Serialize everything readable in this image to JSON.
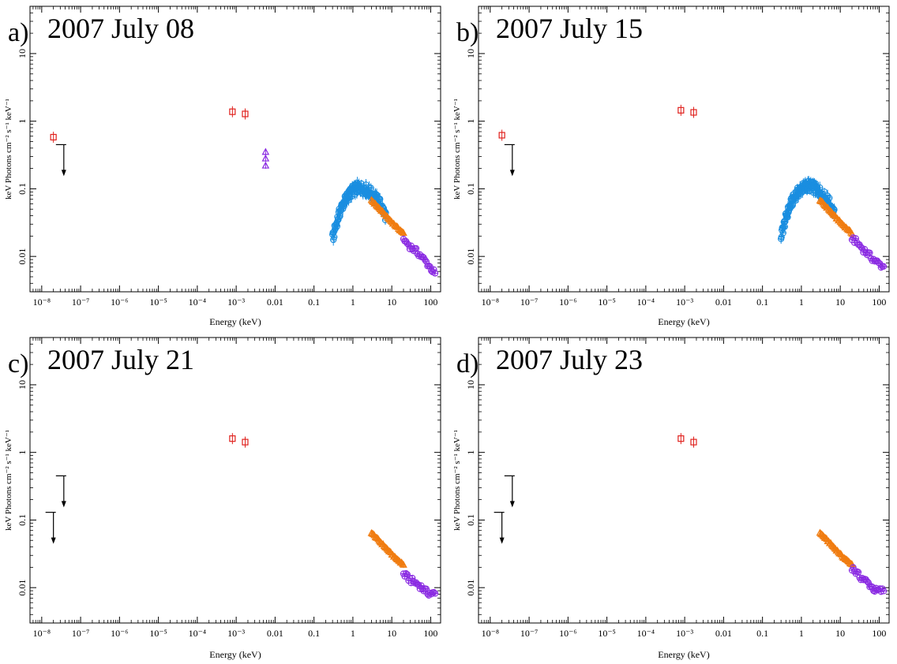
{
  "colors": {
    "radio": "#e0201c",
    "optical": "#8a2be2",
    "xrt": "#1a8ee0",
    "batse": "#f07c10",
    "bat": "#8a2be2",
    "limit": "#000000"
  },
  "chart_data": [
    {
      "type": "scatter",
      "panel_label": "a)",
      "title": "2007 July 08",
      "xlabel": "Energy (keV)",
      "ylabel": "keV Photons cm⁻² s⁻¹ keV⁻¹",
      "xscale": "log",
      "yscale": "log",
      "xlim": [
        5e-09,
        180
      ],
      "ylim": [
        0.003,
        50
      ],
      "xticks": [
        "10⁻⁸",
        "10⁻⁷",
        "10⁻⁶",
        "10⁻⁵",
        "10⁻⁴",
        "10⁻³",
        "0.01",
        "0.1",
        "1",
        "10",
        "100"
      ],
      "yticks": [
        "0.01",
        "0.1",
        "1",
        "10"
      ],
      "series": [
        {
          "marker": "square",
          "color": "radio",
          "x": [
            2e-08,
            0.0008,
            0.0017
          ],
          "y": [
            0.58,
            1.38,
            1.28
          ]
        },
        {
          "marker": "triangle",
          "color": "optical",
          "x": [
            0.0057,
            0.0057,
            0.0057
          ],
          "y": [
            0.35,
            0.28,
            0.22
          ]
        },
        {
          "marker": "circle",
          "color": "xrt",
          "curve": "xrt",
          "x": [
            0.3,
            0.4,
            0.5,
            0.7,
            1,
            1.5,
            2,
            3,
            5,
            7
          ],
          "y": [
            0.018,
            0.035,
            0.052,
            0.075,
            0.095,
            0.105,
            0.1,
            0.085,
            0.06,
            0.04
          ]
        },
        {
          "marker": "triangle",
          "color": "batse",
          "curve": "power",
          "x": [
            3,
            5,
            8,
            12,
            20
          ],
          "y": [
            0.068,
            0.05,
            0.037,
            0.029,
            0.022
          ]
        },
        {
          "marker": "circle",
          "color": "bat",
          "curve": "power",
          "x": [
            20,
            30,
            50,
            80,
            130
          ],
          "y": [
            0.018,
            0.014,
            0.011,
            0.008,
            0.0055
          ]
        }
      ],
      "upper_limits": [
        {
          "x": 3.7e-08,
          "y": 0.45
        }
      ]
    },
    {
      "type": "scatter",
      "panel_label": "b)",
      "title": "2007 July 15",
      "xlabel": "Energy (keV)",
      "ylabel": "keV Photons cm⁻² s⁻¹ keV⁻¹",
      "xscale": "log",
      "yscale": "log",
      "xlim": [
        5e-09,
        180
      ],
      "ylim": [
        0.003,
        50
      ],
      "xticks": [
        "10⁻⁸",
        "10⁻⁷",
        "10⁻⁶",
        "10⁻⁵",
        "10⁻⁴",
        "10⁻³",
        "0.01",
        "0.1",
        "1",
        "10",
        "100"
      ],
      "yticks": [
        "0.01",
        "0.1",
        "1",
        "10"
      ],
      "series": [
        {
          "marker": "square",
          "color": "radio",
          "x": [
            2e-08,
            0.0008,
            0.0017
          ],
          "y": [
            0.62,
            1.45,
            1.35
          ]
        },
        {
          "marker": "circle",
          "color": "xrt",
          "curve": "xrt",
          "x": [
            0.3,
            0.4,
            0.5,
            0.7,
            1,
            1.5,
            2,
            3,
            5,
            7
          ],
          "y": [
            0.02,
            0.037,
            0.055,
            0.08,
            0.1,
            0.112,
            0.105,
            0.09,
            0.065,
            0.042
          ]
        },
        {
          "marker": "triangle",
          "color": "batse",
          "curve": "power",
          "x": [
            3,
            5,
            8,
            12,
            20
          ],
          "y": [
            0.068,
            0.05,
            0.037,
            0.029,
            0.022
          ]
        },
        {
          "marker": "circle",
          "color": "bat",
          "curve": "power",
          "x": [
            20,
            30,
            50,
            80,
            130
          ],
          "y": [
            0.019,
            0.015,
            0.011,
            0.0085,
            0.007
          ]
        }
      ],
      "upper_limits": [
        {
          "x": 3.7e-08,
          "y": 0.45
        }
      ]
    },
    {
      "type": "scatter",
      "panel_label": "c)",
      "title": "2007 July 21",
      "xlabel": "Energy (keV)",
      "ylabel": "keV Photons cm⁻² s⁻¹ keV⁻¹",
      "xscale": "log",
      "yscale": "log",
      "xlim": [
        5e-09,
        180
      ],
      "ylim": [
        0.003,
        50
      ],
      "xticks": [
        "10⁻⁸",
        "10⁻⁷",
        "10⁻⁶",
        "10⁻⁵",
        "10⁻⁴",
        "10⁻³",
        "0.01",
        "0.1",
        "1",
        "10",
        "100"
      ],
      "yticks": [
        "0.01",
        "0.1",
        "1",
        "10"
      ],
      "series": [
        {
          "marker": "square",
          "color": "radio",
          "x": [
            0.0008,
            0.0017
          ],
          "y": [
            1.6,
            1.42
          ]
        },
        {
          "marker": "triangle",
          "color": "batse",
          "curve": "power",
          "x": [
            3,
            5,
            8,
            12,
            20
          ],
          "y": [
            0.065,
            0.048,
            0.036,
            0.028,
            0.022
          ]
        },
        {
          "marker": "circle",
          "color": "bat",
          "curve": "power",
          "x": [
            20,
            30,
            50,
            80,
            130
          ],
          "y": [
            0.016,
            0.013,
            0.011,
            0.0085,
            0.008
          ]
        }
      ],
      "upper_limits": [
        {
          "x": 2e-08,
          "y": 0.13
        },
        {
          "x": 3.7e-08,
          "y": 0.45
        }
      ]
    },
    {
      "type": "scatter",
      "panel_label": "d)",
      "title": "2007 July 23",
      "xlabel": "Energy (keV)",
      "ylabel": "keV Photons cm⁻² s⁻¹ keV⁻¹",
      "xscale": "log",
      "yscale": "log",
      "xlim": [
        5e-09,
        180
      ],
      "ylim": [
        0.003,
        50
      ],
      "xticks": [
        "10⁻⁸",
        "10⁻⁷",
        "10⁻⁶",
        "10⁻⁵",
        "10⁻⁴",
        "10⁻³",
        "0.01",
        "0.1",
        "1",
        "10",
        "100"
      ],
      "yticks": [
        "0.01",
        "0.1",
        "1",
        "10"
      ],
      "series": [
        {
          "marker": "square",
          "color": "radio",
          "x": [
            0.0008,
            0.0017
          ],
          "y": [
            1.6,
            1.42
          ]
        },
        {
          "marker": "triangle",
          "color": "batse",
          "curve": "power",
          "x": [
            3,
            5,
            8,
            12,
            20
          ],
          "y": [
            0.065,
            0.048,
            0.036,
            0.028,
            0.022
          ]
        },
        {
          "marker": "circle",
          "color": "bat",
          "curve": "power",
          "x": [
            20,
            30,
            50,
            80,
            130
          ],
          "y": [
            0.02,
            0.015,
            0.012,
            0.009,
            0.009
          ]
        }
      ],
      "upper_limits": [
        {
          "x": 2e-08,
          "y": 0.13
        },
        {
          "x": 3.7e-08,
          "y": 0.45
        }
      ]
    }
  ]
}
